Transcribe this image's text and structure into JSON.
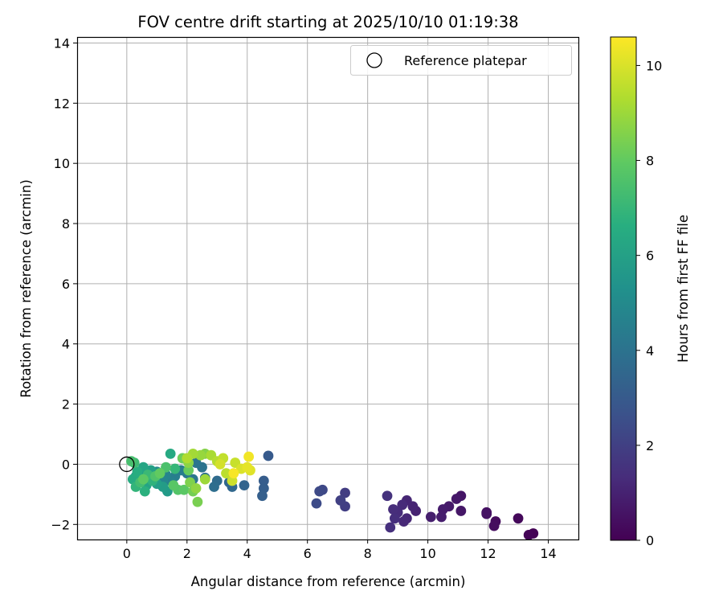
{
  "chart_data": {
    "type": "scatter",
    "title": "FOV centre drift starting at 2025/10/10 01:19:38",
    "xlabel": "Angular distance from reference (arcmin)",
    "ylabel": "Rotation from reference (arcmin)",
    "xlim": [
      -1.65,
      15.0
    ],
    "ylim": [
      -2.5,
      14.2
    ],
    "xticks": [
      0,
      2,
      4,
      6,
      8,
      10,
      12,
      14
    ],
    "yticks": [
      -2,
      0,
      2,
      4,
      6,
      8,
      10,
      12,
      14
    ],
    "xtick_labels": [
      "0",
      "2",
      "4",
      "6",
      "8",
      "10",
      "12",
      "14"
    ],
    "ytick_labels": [
      "−2",
      "0",
      "2",
      "4",
      "6",
      "8",
      "10",
      "12",
      "14"
    ],
    "grid": true,
    "legend": {
      "position": "upper right",
      "entries": [
        "Reference platepar"
      ]
    },
    "reference_point": {
      "x": 0,
      "y": 0,
      "label": "Reference platepar"
    },
    "colorbar": {
      "label": "Hours from first FF file",
      "range": [
        0,
        10.6
      ],
      "ticks": [
        0,
        2,
        4,
        6,
        8,
        10
      ],
      "tick_labels": [
        "0",
        "2",
        "4",
        "6",
        "8",
        "10"
      ],
      "colormap": "viridis"
    },
    "points": [
      {
        "x": 13.5,
        "y": -2.3,
        "t": 0.05
      },
      {
        "x": 13.35,
        "y": -2.35,
        "t": 0.1
      },
      {
        "x": 13.0,
        "y": -1.8,
        "t": 0.2
      },
      {
        "x": 12.25,
        "y": -1.9,
        "t": 0.3
      },
      {
        "x": 12.2,
        "y": -2.05,
        "t": 0.35
      },
      {
        "x": 11.95,
        "y": -1.6,
        "t": 0.45
      },
      {
        "x": 11.95,
        "y": -1.65,
        "t": 0.5
      },
      {
        "x": 11.1,
        "y": -1.05,
        "t": 0.6
      },
      {
        "x": 11.1,
        "y": -1.55,
        "t": 0.65
      },
      {
        "x": 10.95,
        "y": -1.15,
        "t": 0.7
      },
      {
        "x": 10.7,
        "y": -1.4,
        "t": 0.75
      },
      {
        "x": 10.5,
        "y": -1.5,
        "t": 0.8
      },
      {
        "x": 10.45,
        "y": -1.75,
        "t": 0.85
      },
      {
        "x": 10.1,
        "y": -1.75,
        "t": 0.9
      },
      {
        "x": 9.6,
        "y": -1.55,
        "t": 1.0
      },
      {
        "x": 9.5,
        "y": -1.4,
        "t": 1.05
      },
      {
        "x": 9.3,
        "y": -1.2,
        "t": 1.1
      },
      {
        "x": 9.3,
        "y": -1.8,
        "t": 1.15
      },
      {
        "x": 9.2,
        "y": -1.9,
        "t": 1.2
      },
      {
        "x": 9.15,
        "y": -1.35,
        "t": 1.25
      },
      {
        "x": 9.0,
        "y": -1.6,
        "t": 1.3
      },
      {
        "x": 8.85,
        "y": -1.5,
        "t": 1.35
      },
      {
        "x": 8.9,
        "y": -1.8,
        "t": 1.4
      },
      {
        "x": 8.75,
        "y": -2.1,
        "t": 1.45
      },
      {
        "x": 8.65,
        "y": -1.05,
        "t": 1.5
      },
      {
        "x": 7.25,
        "y": -0.95,
        "t": 1.9
      },
      {
        "x": 7.25,
        "y": -1.4,
        "t": 1.95
      },
      {
        "x": 7.1,
        "y": -1.2,
        "t": 2.0
      },
      {
        "x": 6.5,
        "y": -0.85,
        "t": 2.3
      },
      {
        "x": 6.4,
        "y": -0.9,
        "t": 2.35
      },
      {
        "x": 6.3,
        "y": -1.3,
        "t": 2.4
      },
      {
        "x": 4.7,
        "y": 0.28,
        "t": 3.0
      },
      {
        "x": 4.55,
        "y": -0.55,
        "t": 3.1
      },
      {
        "x": 4.55,
        "y": -0.8,
        "t": 3.15
      },
      {
        "x": 4.5,
        "y": -1.05,
        "t": 3.2
      },
      {
        "x": 3.9,
        "y": -0.7,
        "t": 3.4
      },
      {
        "x": 3.5,
        "y": -0.75,
        "t": 3.5
      },
      {
        "x": 3.4,
        "y": -0.6,
        "t": 3.55
      },
      {
        "x": 3.0,
        "y": -0.55,
        "t": 3.7
      },
      {
        "x": 2.9,
        "y": -0.75,
        "t": 3.8
      },
      {
        "x": 2.6,
        "y": -0.45,
        "t": 3.9
      },
      {
        "x": 2.5,
        "y": -0.1,
        "t": 4.0
      },
      {
        "x": 2.3,
        "y": 0.05,
        "t": 4.1
      },
      {
        "x": 2.2,
        "y": -0.5,
        "t": 4.15
      },
      {
        "x": 2.0,
        "y": -0.3,
        "t": 4.3
      },
      {
        "x": 1.8,
        "y": -0.2,
        "t": 4.4
      },
      {
        "x": 1.6,
        "y": -0.4,
        "t": 4.5
      },
      {
        "x": 1.5,
        "y": -0.6,
        "t": 4.6
      },
      {
        "x": 1.3,
        "y": -0.35,
        "t": 4.75
      },
      {
        "x": 1.2,
        "y": -0.55,
        "t": 4.85
      },
      {
        "x": 1.0,
        "y": -0.25,
        "t": 5.0
      },
      {
        "x": 0.9,
        "y": -0.45,
        "t": 5.1
      },
      {
        "x": 0.75,
        "y": -0.3,
        "t": 5.2
      },
      {
        "x": 0.6,
        "y": -0.5,
        "t": 5.3
      },
      {
        "x": 0.5,
        "y": -0.35,
        "t": 5.4
      },
      {
        "x": 0.4,
        "y": -0.6,
        "t": 5.5
      },
      {
        "x": 0.3,
        "y": -0.4,
        "t": 5.6
      },
      {
        "x": 1.35,
        "y": -0.9,
        "t": 5.7
      },
      {
        "x": 1.2,
        "y": -0.75,
        "t": 5.8
      },
      {
        "x": 1.0,
        "y": -0.65,
        "t": 5.9
      },
      {
        "x": 0.8,
        "y": -0.2,
        "t": 6.0
      },
      {
        "x": 0.65,
        "y": -0.7,
        "t": 6.1
      },
      {
        "x": 0.55,
        "y": -0.1,
        "t": 6.2
      },
      {
        "x": 0.45,
        "y": -0.45,
        "t": 6.3
      },
      {
        "x": 1.45,
        "y": 0.35,
        "t": 6.4
      },
      {
        "x": 0.2,
        "y": -0.5,
        "t": 6.5
      },
      {
        "x": 0.35,
        "y": -0.25,
        "t": 6.6
      },
      {
        "x": 0.6,
        "y": -0.9,
        "t": 6.7
      },
      {
        "x": 0.85,
        "y": -0.55,
        "t": 6.8
      },
      {
        "x": 0.3,
        "y": -0.75,
        "t": 6.9
      },
      {
        "x": 1.6,
        "y": -0.15,
        "t": 7.0
      },
      {
        "x": 0.7,
        "y": -0.35,
        "t": 7.1
      },
      {
        "x": 0.25,
        "y": 0.05,
        "t": 7.2
      },
      {
        "x": 0.45,
        "y": -0.6,
        "t": 7.3
      },
      {
        "x": 0.15,
        "y": 0.1,
        "t": 7.4
      },
      {
        "x": 1.3,
        "y": -0.1,
        "t": 7.5
      },
      {
        "x": 0.95,
        "y": -0.4,
        "t": 7.6
      },
      {
        "x": 1.7,
        "y": -0.85,
        "t": 7.7
      },
      {
        "x": 1.55,
        "y": -0.7,
        "t": 7.8
      },
      {
        "x": 1.9,
        "y": -0.85,
        "t": 7.85
      },
      {
        "x": 0.55,
        "y": -0.5,
        "t": 7.9
      },
      {
        "x": 1.1,
        "y": -0.3,
        "t": 8.0
      },
      {
        "x": 2.05,
        "y": -0.2,
        "t": 8.1
      },
      {
        "x": 1.85,
        "y": 0.2,
        "t": 8.2
      },
      {
        "x": 2.2,
        "y": -0.9,
        "t": 8.3
      },
      {
        "x": 2.35,
        "y": -1.25,
        "t": 8.4
      },
      {
        "x": 2.1,
        "y": -0.6,
        "t": 8.5
      },
      {
        "x": 2.6,
        "y": 0.35,
        "t": 8.6
      },
      {
        "x": 2.05,
        "y": 0.05,
        "t": 8.7
      },
      {
        "x": 2.3,
        "y": -0.8,
        "t": 8.8
      },
      {
        "x": 2.45,
        "y": 0.3,
        "t": 8.9
      },
      {
        "x": 2.6,
        "y": -0.5,
        "t": 9.0
      },
      {
        "x": 2.2,
        "y": 0.35,
        "t": 9.1
      },
      {
        "x": 2.8,
        "y": 0.3,
        "t": 9.2
      },
      {
        "x": 2.0,
        "y": 0.2,
        "t": 9.3
      },
      {
        "x": 3.0,
        "y": 0.1,
        "t": 9.4
      },
      {
        "x": 3.3,
        "y": -0.3,
        "t": 9.5
      },
      {
        "x": 3.2,
        "y": 0.2,
        "t": 9.6
      },
      {
        "x": 3.6,
        "y": 0.05,
        "t": 9.7
      },
      {
        "x": 3.5,
        "y": -0.55,
        "t": 9.8
      },
      {
        "x": 3.1,
        "y": 0.0,
        "t": 9.9
      },
      {
        "x": 3.8,
        "y": -0.15,
        "t": 10.0
      },
      {
        "x": 4.1,
        "y": -0.2,
        "t": 10.1
      },
      {
        "x": 4.0,
        "y": -0.1,
        "t": 10.2
      },
      {
        "x": 4.05,
        "y": 0.25,
        "t": 10.4
      },
      {
        "x": 3.55,
        "y": -0.3,
        "t": 10.5
      }
    ]
  }
}
